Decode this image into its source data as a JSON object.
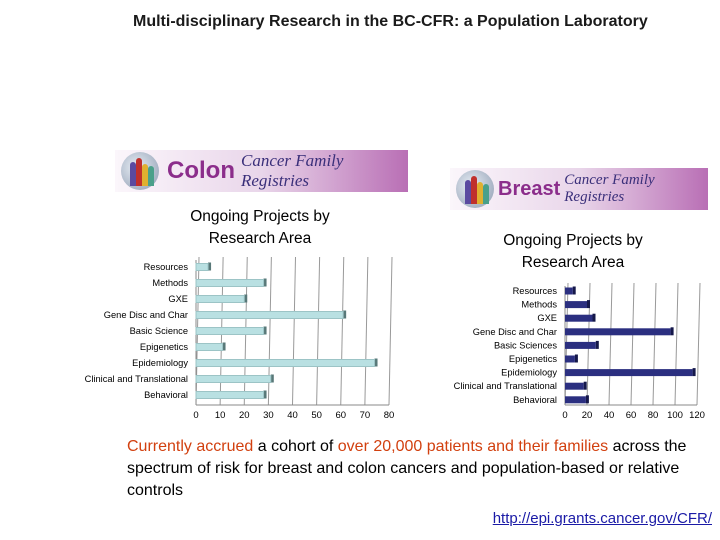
{
  "slide": {
    "title": "Multi-disciplinary Research in the BC-CFR: a Population Laboratory",
    "body_line1_hl1": "Currently accrued",
    "body_line1_mid": " a cohort of ",
    "body_line1_hl2": "over 20,000 patients and their families",
    "body_rest": " across the spectrum of risk for breast and colon cancers and population-based or relative controls",
    "link": "http://epi.grants.cancer.gov/CFR/"
  },
  "logos": {
    "colon": {
      "word": "Colon",
      "rest": "Cancer Family Registries"
    },
    "breast": {
      "word": "Breast",
      "rest": "Cancer Family Registries"
    }
  },
  "chart_data": [
    {
      "type": "bar",
      "orientation": "horizontal",
      "title": "Ongoing Projects by Research Area",
      "categories": [
        "Resources",
        "Methods",
        "GXE",
        "Gene Disc and Char",
        "Basic Science",
        "Epigenetics",
        "Epidemiology",
        "Clinical and Translational",
        "Behavioral"
      ],
      "values": [
        5,
        28,
        20,
        61,
        28,
        11,
        74,
        31,
        28
      ],
      "xlim": [
        0,
        80
      ],
      "xticks": [
        0,
        10,
        20,
        30,
        40,
        50,
        60,
        70,
        80
      ],
      "grid": true,
      "color": "#b9e0e2"
    },
    {
      "type": "bar",
      "orientation": "horizontal",
      "title": "Ongoing Projects by Research Area",
      "categories": [
        "Resources",
        "Methods",
        "GXE",
        "Gene Disc and Char",
        "Basic Sciences",
        "Epigenetics",
        "Epidemiology",
        "Clinical and Translational",
        "Behavioral"
      ],
      "values": [
        7,
        20,
        25,
        96,
        28,
        9,
        116,
        17,
        19
      ],
      "xlim": [
        0,
        120
      ],
      "xticks": [
        0,
        20,
        40,
        60,
        80,
        100,
        120
      ],
      "grid": true,
      "color": "#2b2f80"
    }
  ]
}
